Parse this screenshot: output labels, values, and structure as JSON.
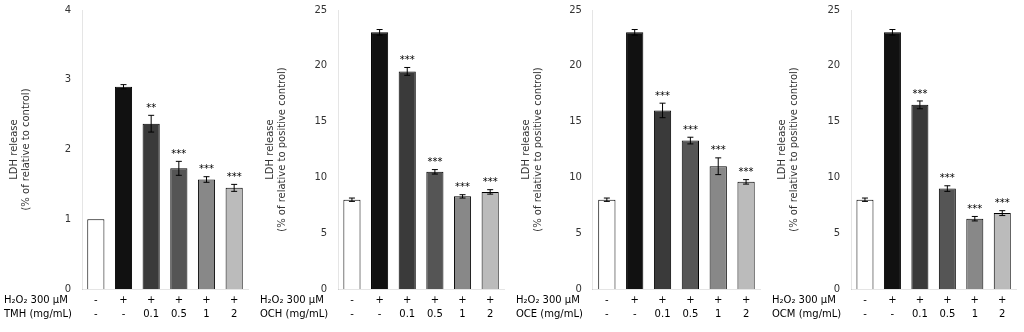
{
  "chart_data": [
    {
      "type": "bar",
      "ylabel": "LDH release\n(% of relative to control)",
      "row_labels": [
        "H₂O₂ 300 μM",
        "TMH (mg/mL)"
      ],
      "categories": [
        [
          "-",
          "-"
        ],
        [
          "+",
          "-"
        ],
        [
          "+",
          "0.1"
        ],
        [
          "+",
          "0.5"
        ],
        [
          "+",
          "1"
        ],
        [
          "+",
          "2"
        ]
      ],
      "values": [
        1.0,
        2.9,
        2.37,
        1.73,
        1.57,
        1.45
      ],
      "errors": [
        0.0,
        0.03,
        0.12,
        0.1,
        0.04,
        0.05
      ],
      "annotations": [
        null,
        null,
        "**",
        "***",
        "***",
        "***"
      ],
      "colors": [
        "white",
        "#111111",
        "#3a3a3a",
        "#555555",
        "#888888",
        "#bbbbbb"
      ],
      "ylim": [
        0,
        4
      ],
      "yticks": [
        0,
        1,
        2,
        3,
        4
      ],
      "grid": false
    },
    {
      "type": "bar",
      "ylabel": "LDH release\n(% of relative to positive control)",
      "row_labels": [
        "H₂O₂ 300 μM",
        "OCH (mg/mL)"
      ],
      "categories": [
        [
          "-",
          "-"
        ],
        [
          "+",
          "-"
        ],
        [
          "+",
          "0.1"
        ],
        [
          "+",
          "0.5"
        ],
        [
          "+",
          "1"
        ],
        [
          "+",
          "2"
        ]
      ],
      "values": [
        8.0,
        23.0,
        19.5,
        10.5,
        8.3,
        8.7
      ],
      "errors": [
        0.15,
        0.25,
        0.35,
        0.2,
        0.15,
        0.2
      ],
      "annotations": [
        null,
        null,
        "***",
        "***",
        "***",
        "***"
      ],
      "colors": [
        "white",
        "#111111",
        "#3a3a3a",
        "#555555",
        "#888888",
        "#bbbbbb"
      ],
      "ylim": [
        0,
        25
      ],
      "yticks": [
        0,
        5,
        10,
        15,
        20,
        25
      ],
      "grid": false
    },
    {
      "type": "bar",
      "ylabel": "LDH release\n(% of relative to positive control)",
      "row_labels": [
        "H₂O₂ 300 μM",
        "OCE (mg/mL)"
      ],
      "categories": [
        [
          "-",
          "-"
        ],
        [
          "+",
          "-"
        ],
        [
          "+",
          "0.1"
        ],
        [
          "+",
          "0.5"
        ],
        [
          "+",
          "1"
        ],
        [
          "+",
          "2"
        ]
      ],
      "values": [
        8.0,
        23.0,
        16.0,
        13.3,
        11.0,
        9.6
      ],
      "errors": [
        0.15,
        0.25,
        0.65,
        0.3,
        0.75,
        0.2
      ],
      "annotations": [
        null,
        null,
        "***",
        "***",
        "***",
        "***"
      ],
      "colors": [
        "white",
        "#111111",
        "#3a3a3a",
        "#555555",
        "#888888",
        "#bbbbbb"
      ],
      "ylim": [
        0,
        25
      ],
      "yticks": [
        0,
        5,
        10,
        15,
        20,
        25
      ],
      "grid": false
    },
    {
      "type": "bar",
      "ylabel": "LDH release\n(% of relative to positive control)",
      "row_labels": [
        "H₂O₂ 300 μM",
        "OCM (mg/mL)"
      ],
      "categories": [
        [
          "-",
          "-"
        ],
        [
          "+",
          "-"
        ],
        [
          "+",
          "0.1"
        ],
        [
          "+",
          "0.5"
        ],
        [
          "+",
          "1"
        ],
        [
          "+",
          "2"
        ]
      ],
      "values": [
        8.0,
        23.0,
        16.5,
        9.0,
        6.3,
        6.8
      ],
      "errors": [
        0.15,
        0.25,
        0.35,
        0.25,
        0.2,
        0.22
      ],
      "annotations": [
        null,
        null,
        "***",
        "***",
        "***",
        "***"
      ],
      "colors": [
        "white",
        "#111111",
        "#3a3a3a",
        "#555555",
        "#888888",
        "#bbbbbb"
      ],
      "ylim": [
        0,
        25
      ],
      "yticks": [
        0,
        5,
        10,
        15,
        20,
        25
      ],
      "grid": false
    }
  ]
}
